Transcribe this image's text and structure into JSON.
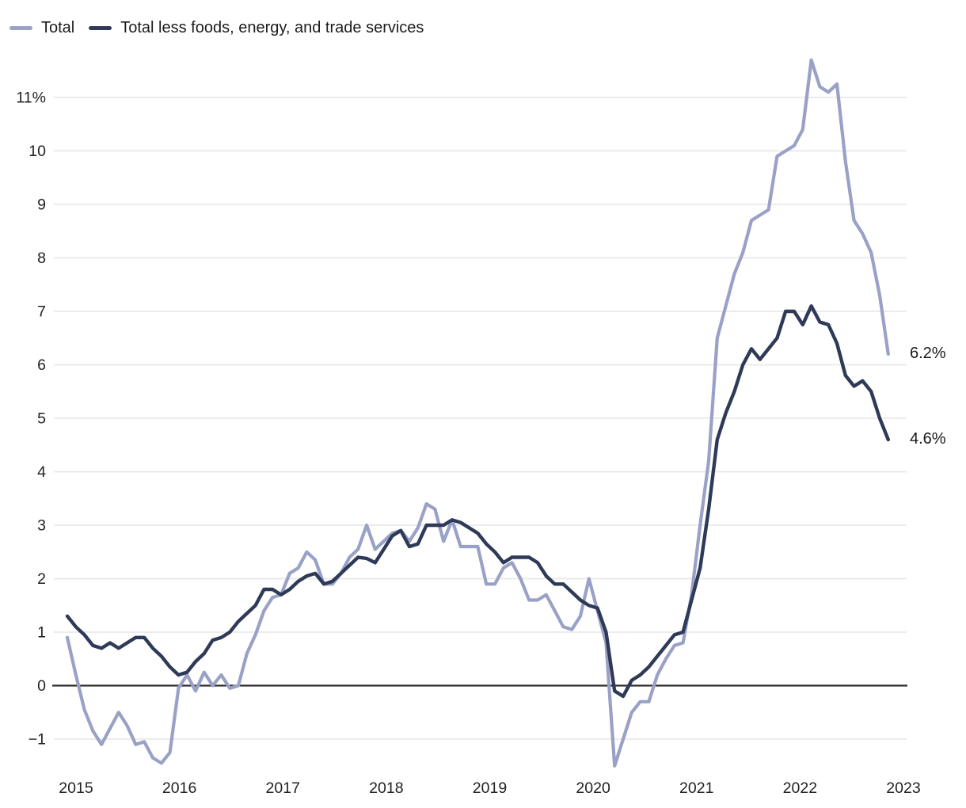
{
  "legend": {
    "items": [
      {
        "label": "Total",
        "color": "#99a1c6"
      },
      {
        "label": "Total less foods, energy, and trade services",
        "color": "#2e3a57"
      }
    ]
  },
  "chart_data": {
    "type": "line",
    "title": "",
    "xlabel": "",
    "ylabel": "",
    "y_unit": "percent",
    "grid": true,
    "legend_position": "top-left",
    "colors": {
      "grid_line": "#e9e9e9",
      "zero_line": "#2e2e2e",
      "tick_text": "#222222",
      "series_total": "#99a1c6",
      "series_core": "#2e3a57"
    },
    "x_tick_labels": [
      "2015",
      "2016",
      "2017",
      "2018",
      "2019",
      "2020",
      "2021",
      "2022",
      "2023"
    ],
    "y_tick_values": [
      11,
      10,
      9,
      8,
      7,
      6,
      5,
      4,
      3,
      2,
      1,
      0,
      -1
    ],
    "y_tick_labels": [
      "11%",
      "10",
      "9",
      "8",
      "7",
      "6",
      "5",
      "4",
      "3",
      "2",
      "1",
      "0",
      "−1"
    ],
    "ylim": [
      -1.7,
      12.0
    ],
    "x": [
      "2014-12",
      "2015-01",
      "2015-02",
      "2015-03",
      "2015-04",
      "2015-05",
      "2015-06",
      "2015-07",
      "2015-08",
      "2015-09",
      "2015-10",
      "2015-11",
      "2015-12",
      "2016-01",
      "2016-02",
      "2016-03",
      "2016-04",
      "2016-05",
      "2016-06",
      "2016-07",
      "2016-08",
      "2016-09",
      "2016-10",
      "2016-11",
      "2016-12",
      "2017-01",
      "2017-02",
      "2017-03",
      "2017-04",
      "2017-05",
      "2017-06",
      "2017-07",
      "2017-08",
      "2017-09",
      "2017-10",
      "2017-11",
      "2017-12",
      "2018-01",
      "2018-02",
      "2018-03",
      "2018-04",
      "2018-05",
      "2018-06",
      "2018-07",
      "2018-08",
      "2018-09",
      "2018-10",
      "2018-11",
      "2018-12",
      "2019-01",
      "2019-02",
      "2019-03",
      "2019-04",
      "2019-05",
      "2019-06",
      "2019-07",
      "2019-08",
      "2019-09",
      "2019-10",
      "2019-11",
      "2019-12",
      "2020-01",
      "2020-02",
      "2020-03",
      "2020-04",
      "2020-05",
      "2020-06",
      "2020-07",
      "2020-08",
      "2020-09",
      "2020-10",
      "2020-11",
      "2020-12",
      "2021-01",
      "2021-02",
      "2021-03",
      "2021-04",
      "2021-05",
      "2021-06",
      "2021-07",
      "2021-08",
      "2021-09",
      "2021-10",
      "2021-11",
      "2021-12",
      "2022-01",
      "2022-02",
      "2022-03",
      "2022-04",
      "2022-05",
      "2022-06",
      "2022-07",
      "2022-08",
      "2022-09",
      "2022-10",
      "2022-11",
      "2022-12"
    ],
    "series": [
      {
        "name": "Total",
        "color": "#99a1c6",
        "end_label": "6.2%",
        "values": [
          0.9,
          0.2,
          -0.45,
          -0.85,
          -1.1,
          -0.8,
          -0.5,
          -0.75,
          -1.1,
          -1.05,
          -1.35,
          -1.45,
          -1.25,
          -0.05,
          0.2,
          -0.1,
          0.25,
          0.0,
          0.2,
          -0.05,
          0.0,
          0.6,
          0.95,
          1.4,
          1.65,
          1.7,
          2.1,
          2.2,
          2.5,
          2.35,
          1.9,
          1.9,
          2.1,
          2.4,
          2.55,
          3.0,
          2.55,
          2.7,
          2.85,
          2.9,
          2.7,
          2.95,
          3.4,
          3.3,
          2.7,
          3.1,
          2.6,
          2.6,
          2.6,
          1.9,
          1.9,
          2.2,
          2.3,
          2.0,
          1.6,
          1.6,
          1.7,
          1.4,
          1.1,
          1.05,
          1.3,
          2.0,
          1.4,
          0.8,
          -1.5,
          -1.0,
          -0.5,
          -0.3,
          -0.3,
          0.2,
          0.5,
          0.75,
          0.8,
          1.7,
          3.0,
          4.2,
          6.5,
          7.1,
          7.7,
          8.1,
          8.7,
          8.8,
          8.9,
          9.9,
          10.0,
          10.1,
          10.4,
          11.7,
          11.2,
          11.1,
          11.25,
          9.8,
          8.7,
          8.45,
          8.1,
          7.3,
          6.2
        ]
      },
      {
        "name": "Total less foods, energy, and trade services",
        "color": "#2e3a57",
        "end_label": "4.6%",
        "values": [
          1.3,
          1.1,
          0.95,
          0.75,
          0.7,
          0.8,
          0.7,
          0.8,
          0.9,
          0.9,
          0.7,
          0.55,
          0.35,
          0.2,
          0.25,
          0.45,
          0.6,
          0.85,
          0.9,
          1.0,
          1.2,
          1.35,
          1.5,
          1.8,
          1.8,
          1.7,
          1.8,
          1.95,
          2.05,
          2.1,
          1.9,
          1.95,
          2.1,
          2.25,
          2.4,
          2.38,
          2.3,
          2.55,
          2.8,
          2.9,
          2.6,
          2.65,
          3.0,
          3.0,
          3.0,
          3.1,
          3.05,
          2.95,
          2.85,
          2.65,
          2.5,
          2.3,
          2.4,
          2.4,
          2.4,
          2.3,
          2.05,
          1.9,
          1.9,
          1.75,
          1.6,
          1.5,
          1.45,
          1.0,
          -0.1,
          -0.2,
          0.1,
          0.2,
          0.35,
          0.55,
          0.75,
          0.95,
          1.0,
          1.6,
          2.2,
          3.3,
          4.6,
          5.1,
          5.5,
          6.0,
          6.3,
          6.1,
          6.3,
          6.5,
          7.0,
          7.0,
          6.75,
          7.1,
          6.8,
          6.75,
          6.4,
          5.8,
          5.6,
          5.7,
          5.5,
          5.0,
          4.6
        ]
      }
    ]
  }
}
